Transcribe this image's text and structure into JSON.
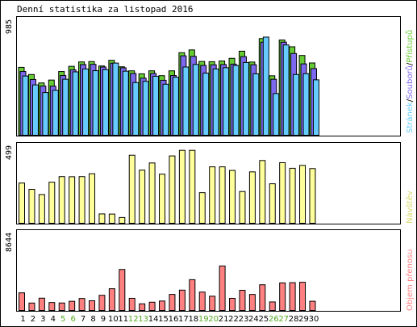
{
  "title": "Denní statistika za listopad 2016",
  "colors": {
    "hits": "#66cc33",
    "files": "#7b68ee",
    "pages": "#66ccff",
    "visits": "#ffff99",
    "volume": "#ff8080",
    "weekday": "#000000",
    "weekend": "#55aa22",
    "panel_bg": "#ffffff",
    "border": "#000000"
  },
  "chart_data": [
    {
      "type": "bar",
      "panel": "hits-files-pages",
      "title": "Denní statistika za listopad 2016",
      "ytick_max_label": "985",
      "legend": [
        "Stránek",
        "Souborů",
        "Přístupů"
      ],
      "legend_separator": "/",
      "ylim": [
        0,
        1000
      ],
      "categories": [
        "1",
        "2",
        "3",
        "4",
        "5",
        "6",
        "7",
        "8",
        "9",
        "10",
        "11",
        "12",
        "13",
        "14",
        "15",
        "16",
        "17",
        "18",
        "19",
        "20",
        "21",
        "22",
        "23",
        "24",
        "25",
        "26",
        "27",
        "28",
        "29",
        "30"
      ],
      "weekend": [
        "5",
        "6",
        "12",
        "13",
        "19",
        "20",
        "26",
        "27"
      ],
      "series": [
        {
          "name": "Přístupů",
          "values": [
            588,
            526,
            453,
            478,
            552,
            597,
            635,
            638,
            600,
            649,
            593,
            558,
            532,
            558,
            516,
            558,
            715,
            739,
            639,
            637,
            643,
            666,
            728,
            634,
            837,
            515,
            825,
            766,
            691,
            626
          ]
        },
        {
          "name": "Souborů",
          "values": [
            552,
            483,
            426,
            425,
            517,
            566,
            612,
            614,
            591,
            624,
            584,
            535,
            494,
            535,
            476,
            517,
            688,
            683,
            605,
            610,
            612,
            616,
            681,
            611,
            806,
            485,
            806,
            708,
            618,
            577
          ]
        },
        {
          "name": "Stránek",
          "values": [
            513,
            436,
            370,
            389,
            485,
            549,
            574,
            559,
            568,
            625,
            555,
            456,
            467,
            511,
            442,
            503,
            591,
            613,
            538,
            574,
            585,
            604,
            630,
            532,
            850,
            361,
            782,
            526,
            533,
            480
          ]
        }
      ]
    },
    {
      "type": "bar",
      "panel": "visits",
      "ytick_max_label": "499",
      "legend": [
        "Návštěv"
      ],
      "ylim": [
        0,
        540
      ],
      "categories": [
        "1",
        "2",
        "3",
        "4",
        "5",
        "6",
        "7",
        "8",
        "9",
        "10",
        "11",
        "12",
        "13",
        "14",
        "15",
        "16",
        "17",
        "18",
        "19",
        "20",
        "21",
        "22",
        "23",
        "24",
        "25",
        "26",
        "27",
        "28",
        "29",
        "30"
      ],
      "series": [
        {
          "name": "Návštěv",
          "values": [
            280,
            236,
            200,
            286,
            325,
            324,
            325,
            345,
            65,
            64,
            40,
            474,
            370,
            420,
            342,
            469,
            508,
            508,
            213,
            393,
            393,
            368,
            221,
            358,
            437,
            275,
            422,
            383,
            403,
            381
          ]
        }
      ]
    },
    {
      "type": "bar",
      "panel": "volume",
      "ytick_max_label": "8644",
      "legend": [
        "Objem přenosu"
      ],
      "ylim": [
        0,
        9550
      ],
      "categories": [
        "1",
        "2",
        "3",
        "4",
        "5",
        "6",
        "7",
        "8",
        "9",
        "10",
        "11",
        "12",
        "13",
        "14",
        "15",
        "16",
        "17",
        "18",
        "19",
        "20",
        "21",
        "22",
        "23",
        "24",
        "25",
        "26",
        "27",
        "28",
        "29",
        "30"
      ],
      "series": [
        {
          "name": "Objem přenosu",
          "values": [
            2170,
            915,
            1514,
            978,
            921,
            1129,
            1477,
            1196,
            1867,
            2676,
            5050,
            1496,
            817,
            1015,
            1161,
            1979,
            2505,
            3792,
            2261,
            1755,
            5480,
            1496,
            2484,
            1975,
            3165,
            1050,
            3399,
            3425,
            3475,
            1136
          ]
        }
      ]
    }
  ]
}
